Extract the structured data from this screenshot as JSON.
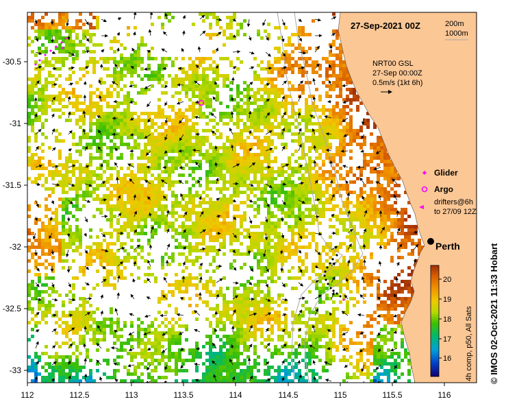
{
  "title": "27-Sep-2021 00Z",
  "depth_contours": {
    "line1": "200m",
    "line2": "1000m"
  },
  "current_info": {
    "line1": "NRT00 GSL",
    "line2": "27-Sep 00:00Z",
    "line3": "0.5m/s (1kt 6h)"
  },
  "legend": {
    "glider": "Glider",
    "argo": "Argo",
    "drifters_line1": "drifters@6h",
    "drifters_line2": "to 27/09 12Z",
    "glider_color": "#ff00ff",
    "argo_color": "#ff00ff"
  },
  "city": {
    "name": "Perth"
  },
  "colorbar": {
    "label": "4h comp, p50, All Sats",
    "ticks": [
      "16",
      "17",
      "18",
      "19",
      "20"
    ]
  },
  "credit": "© IMOS 02-Oct-2021 11:33 Hobart",
  "axes": {
    "x_ticks": [
      "112",
      "112.5",
      "113",
      "113.5",
      "114",
      "114.5",
      "115",
      "115.5",
      "116"
    ],
    "y_ticks": [
      "-30.5",
      "-31",
      "-31.5",
      "-32",
      "-32.5",
      "-33"
    ]
  },
  "colors": {
    "land": "#fbc795",
    "ocean": "#ffffff",
    "contour": "#a8a8a8",
    "marker": "#ff00ff"
  }
}
